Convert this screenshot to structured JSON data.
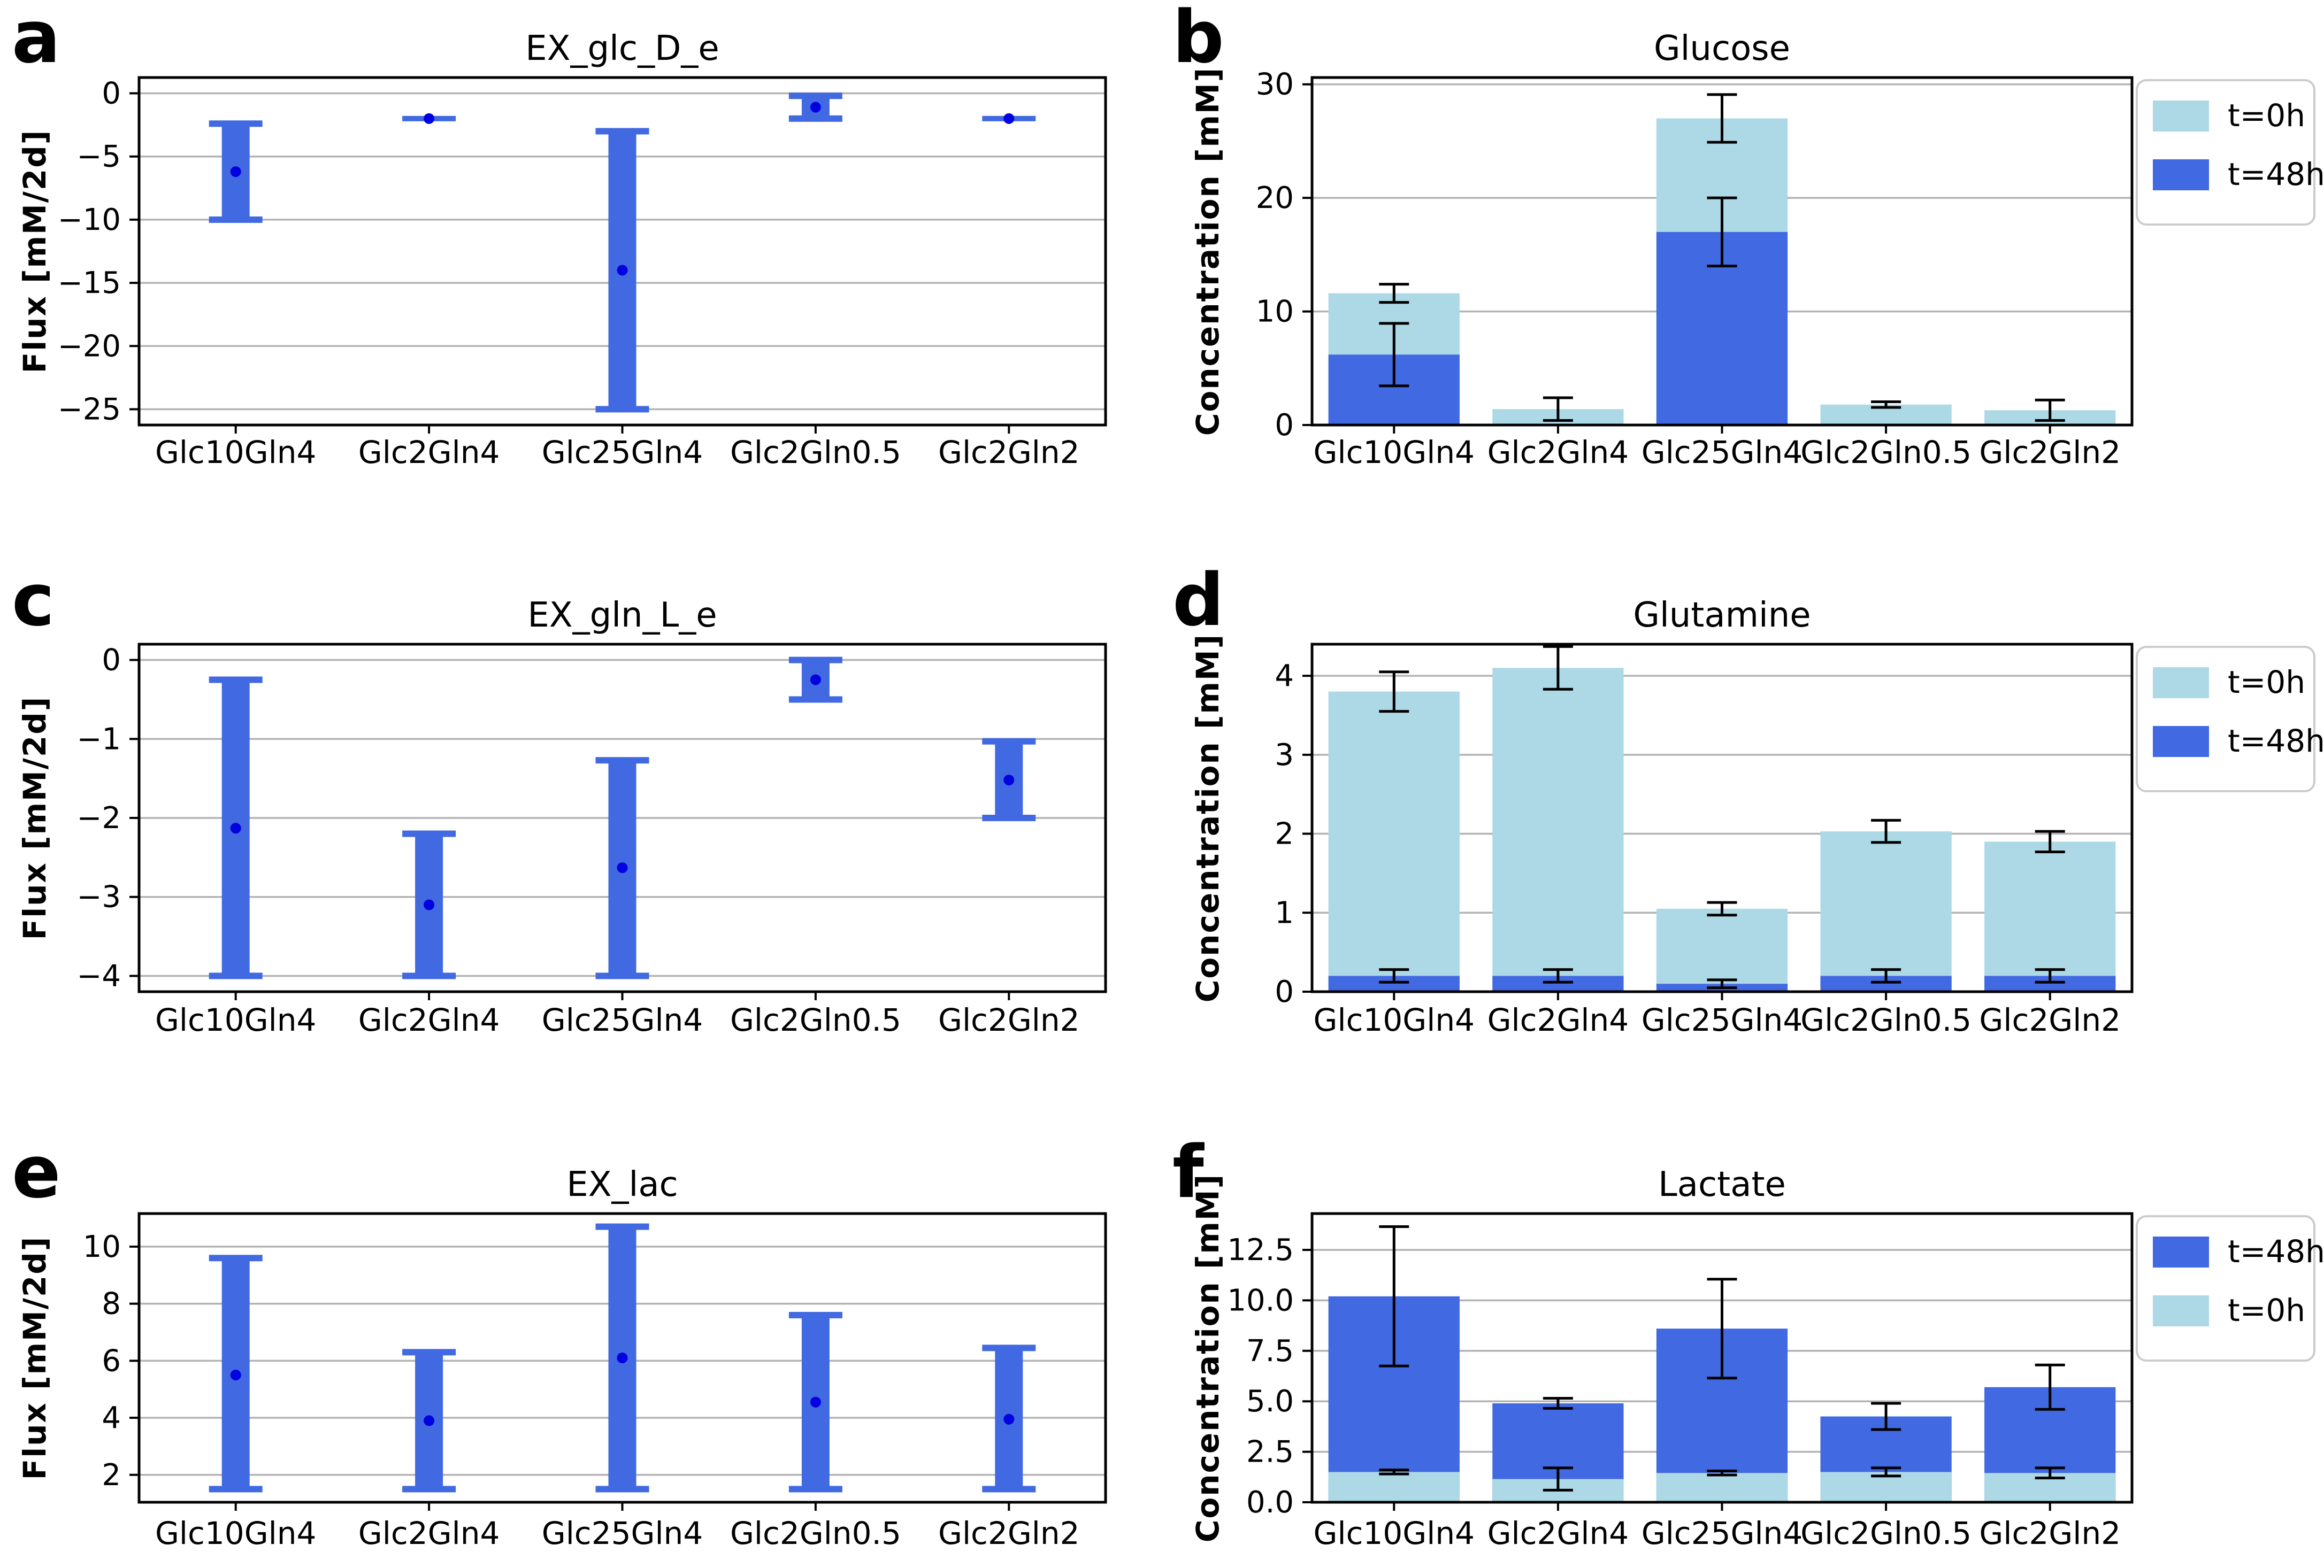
{
  "figure": {
    "background": "#ffffff",
    "palette": {
      "light_blue_t0": "#ADD8E6",
      "royal_blue_t48": "#4169E1",
      "range_bar": "#4169E1",
      "point_dot": "#0000E0",
      "grid": "#b3b3b3",
      "axis": "#000000",
      "error_bar": "#000000",
      "legend_border": "#cccccc"
    },
    "categories": [
      "Glc10Gln4",
      "Glc2Gln4",
      "Glc25Gln4",
      "Glc2Gln0.5",
      "Glc2Gln2"
    ]
  },
  "chart_data": [
    {
      "letter": "a",
      "type": "range-bar",
      "title": "EX_glc_D_e",
      "ylabel": "Flux [mM/2d]",
      "categories": [
        "Glc10Gln4",
        "Glc2Gln4",
        "Glc25Gln4",
        "Glc2Gln0.5",
        "Glc2Gln2"
      ],
      "yticks": [
        0,
        -5,
        -10,
        -15,
        -20,
        -25
      ],
      "ytick_labels": [
        "0",
        "−5",
        "−10",
        "−15",
        "−20",
        "−25"
      ],
      "ylim": [
        -26.25,
        1.25
      ],
      "grid": true,
      "ranges": [
        {
          "hi": -2.4,
          "lo": -10.0,
          "point": -6.2
        },
        {
          "hi": -2.0,
          "lo": -2.0,
          "point": -2.0
        },
        {
          "hi": -3.0,
          "lo": -25.0,
          "point": -14.0
        },
        {
          "hi": -0.2,
          "lo": -2.0,
          "point": -1.1
        },
        {
          "hi": -2.0,
          "lo": -2.0,
          "point": -2.0
        }
      ]
    },
    {
      "letter": "b",
      "type": "bar",
      "title": "Glucose",
      "ylabel": "Concentration [mM]",
      "categories": [
        "Glc10Gln4",
        "Glc2Gln4",
        "Glc25Gln4",
        "Glc2Gln0.5",
        "Glc2Gln2"
      ],
      "yticks": [
        0,
        10,
        20,
        30
      ],
      "ytick_labels": [
        "0",
        "10",
        "20",
        "30"
      ],
      "ylim": [
        0,
        30.6
      ],
      "grid": true,
      "legend_position": "right-top",
      "legend": [
        {
          "label": "t=0h",
          "color": "#ADD8E6"
        },
        {
          "label": "t=48h",
          "color": "#4169E1"
        }
      ],
      "series": [
        {
          "name": "t=0h",
          "color": "#ADD8E6",
          "values": [
            11.6,
            1.4,
            27.0,
            1.8,
            1.3
          ],
          "errors": [
            0.8,
            1.0,
            2.1,
            0.25,
            0.9
          ]
        },
        {
          "name": "t=48h",
          "color": "#4169E1",
          "values": [
            6.2,
            0,
            17.0,
            0,
            0
          ],
          "errors": [
            2.75,
            0,
            3.0,
            0,
            0
          ]
        }
      ]
    },
    {
      "letter": "c",
      "type": "range-bar",
      "title": "EX_gln_L_e",
      "ylabel": "Flux [mM/2d]",
      "categories": [
        "Glc10Gln4",
        "Glc2Gln4",
        "Glc25Gln4",
        "Glc2Gln0.5",
        "Glc2Gln2"
      ],
      "yticks": [
        0,
        -1,
        -2,
        -3,
        -4
      ],
      "ytick_labels": [
        "0",
        "−1",
        "−2",
        "−3",
        "−4"
      ],
      "ylim": [
        -4.2,
        0.2
      ],
      "grid": true,
      "ranges": [
        {
          "hi": -0.25,
          "lo": -4.0,
          "point": -2.13
        },
        {
          "hi": -2.2,
          "lo": -4.0,
          "point": -3.1
        },
        {
          "hi": -1.27,
          "lo": -4.0,
          "point": -2.63
        },
        {
          "hi": 0.0,
          "lo": -0.5,
          "point": -0.25
        },
        {
          "hi": -1.03,
          "lo": -2.0,
          "point": -1.52
        }
      ]
    },
    {
      "letter": "d",
      "type": "bar",
      "title": "Glutamine",
      "ylabel": "Concentration [mM]",
      "categories": [
        "Glc10Gln4",
        "Glc2Gln4",
        "Glc25Gln4",
        "Glc2Gln0.5",
        "Glc2Gln2"
      ],
      "yticks": [
        0,
        1,
        2,
        3,
        4
      ],
      "ytick_labels": [
        "0",
        "1",
        "2",
        "3",
        "4"
      ],
      "ylim": [
        0,
        4.4
      ],
      "grid": true,
      "legend_position": "right-top",
      "legend": [
        {
          "label": "t=0h",
          "color": "#ADD8E6"
        },
        {
          "label": "t=48h",
          "color": "#4169E1"
        }
      ],
      "series": [
        {
          "name": "t=0h",
          "color": "#ADD8E6",
          "values": [
            3.8,
            4.1,
            1.05,
            2.03,
            1.9
          ],
          "errors": [
            0.25,
            0.27,
            0.08,
            0.14,
            0.13
          ]
        },
        {
          "name": "t=48h",
          "color": "#4169E1",
          "values": [
            0.2,
            0.2,
            0.1,
            0.2,
            0.2
          ],
          "errors": [
            0.08,
            0.08,
            0.05,
            0.08,
            0.08
          ]
        }
      ]
    },
    {
      "letter": "e",
      "type": "range-bar",
      "title": "EX_lac",
      "ylabel": "Flux [mM/2d]",
      "categories": [
        "Glc10Gln4",
        "Glc2Gln4",
        "Glc25Gln4",
        "Glc2Gln0.5",
        "Glc2Gln2"
      ],
      "yticks": [
        2,
        4,
        6,
        8,
        10
      ],
      "ytick_labels": [
        "2",
        "4",
        "6",
        "8",
        "10"
      ],
      "ylim": [
        1.04,
        11.16
      ],
      "grid": true,
      "ranges": [
        {
          "hi": 9.6,
          "lo": 1.5,
          "point": 5.5
        },
        {
          "hi": 6.3,
          "lo": 1.5,
          "point": 3.9
        },
        {
          "hi": 10.7,
          "lo": 1.5,
          "point": 6.1
        },
        {
          "hi": 7.6,
          "lo": 1.5,
          "point": 4.55
        },
        {
          "hi": 6.45,
          "lo": 1.5,
          "point": 3.95
        }
      ]
    },
    {
      "letter": "f",
      "type": "bar",
      "title": "Lactate",
      "ylabel": "Concentration [mM]",
      "categories": [
        "Glc10Gln4",
        "Glc2Gln4",
        "Glc25Gln4",
        "Glc2Gln0.5",
        "Glc2Gln2"
      ],
      "yticks": [
        0,
        2.5,
        5,
        7.5,
        10,
        12.5
      ],
      "ytick_labels": [
        "0.0",
        "2.5",
        "5.0",
        "7.5",
        "10.0",
        "12.5"
      ],
      "ylim": [
        0,
        14.3
      ],
      "grid": true,
      "legend_position": "right-top",
      "legend": [
        {
          "label": "t=48h",
          "color": "#4169E1"
        },
        {
          "label": "t=0h",
          "color": "#ADD8E6"
        }
      ],
      "series": [
        {
          "name": "t=48h",
          "color": "#4169E1",
          "values": [
            10.2,
            4.9,
            8.6,
            4.25,
            5.7
          ],
          "errors": [
            3.45,
            0.25,
            2.45,
            0.65,
            1.1
          ]
        },
        {
          "name": "t=0h",
          "color": "#ADD8E6",
          "values": [
            1.5,
            1.15,
            1.45,
            1.5,
            1.45
          ],
          "errors": [
            0.1,
            0.55,
            0.1,
            0.2,
            0.25
          ]
        }
      ]
    }
  ]
}
